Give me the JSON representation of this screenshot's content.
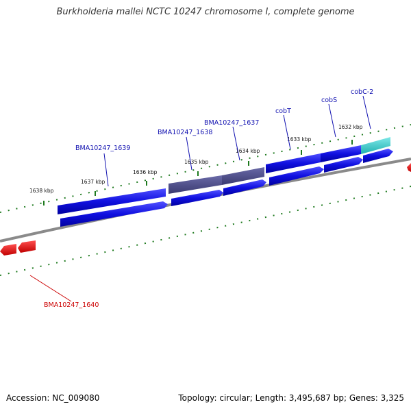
{
  "title": "Burkholderia mallei NCTC 10247 chromosome I, complete genome",
  "footer": {
    "accession": "Accession: NC_009080",
    "summary": "Topology: circular; Length: 3,495,687 bp; Genes: 3,325"
  },
  "kbp_labels": [
    "1638 kbp",
    "1637 kbp",
    "1636 kbp",
    "1635 kbp",
    "1634 kbp",
    "1633 kbp",
    "1632 kbp"
  ],
  "gene_labels": {
    "bma1639": "BMA10247_1639",
    "bma1638": "BMA10247_1638",
    "bma1637": "BMA10247_1637",
    "cobT": "cobT",
    "cobS": "cobS",
    "cobC2": "cobC-2",
    "bma1640": "BMA10247_1640"
  },
  "colors": {
    "forward_gene": "#1a1ae0",
    "reverse_gene": "#e01010",
    "highlight_slate": "#4a4a8a",
    "highlight_cyan": "#35c8c8",
    "backbone": "#808080",
    "tick": "#1e7a1e"
  }
}
